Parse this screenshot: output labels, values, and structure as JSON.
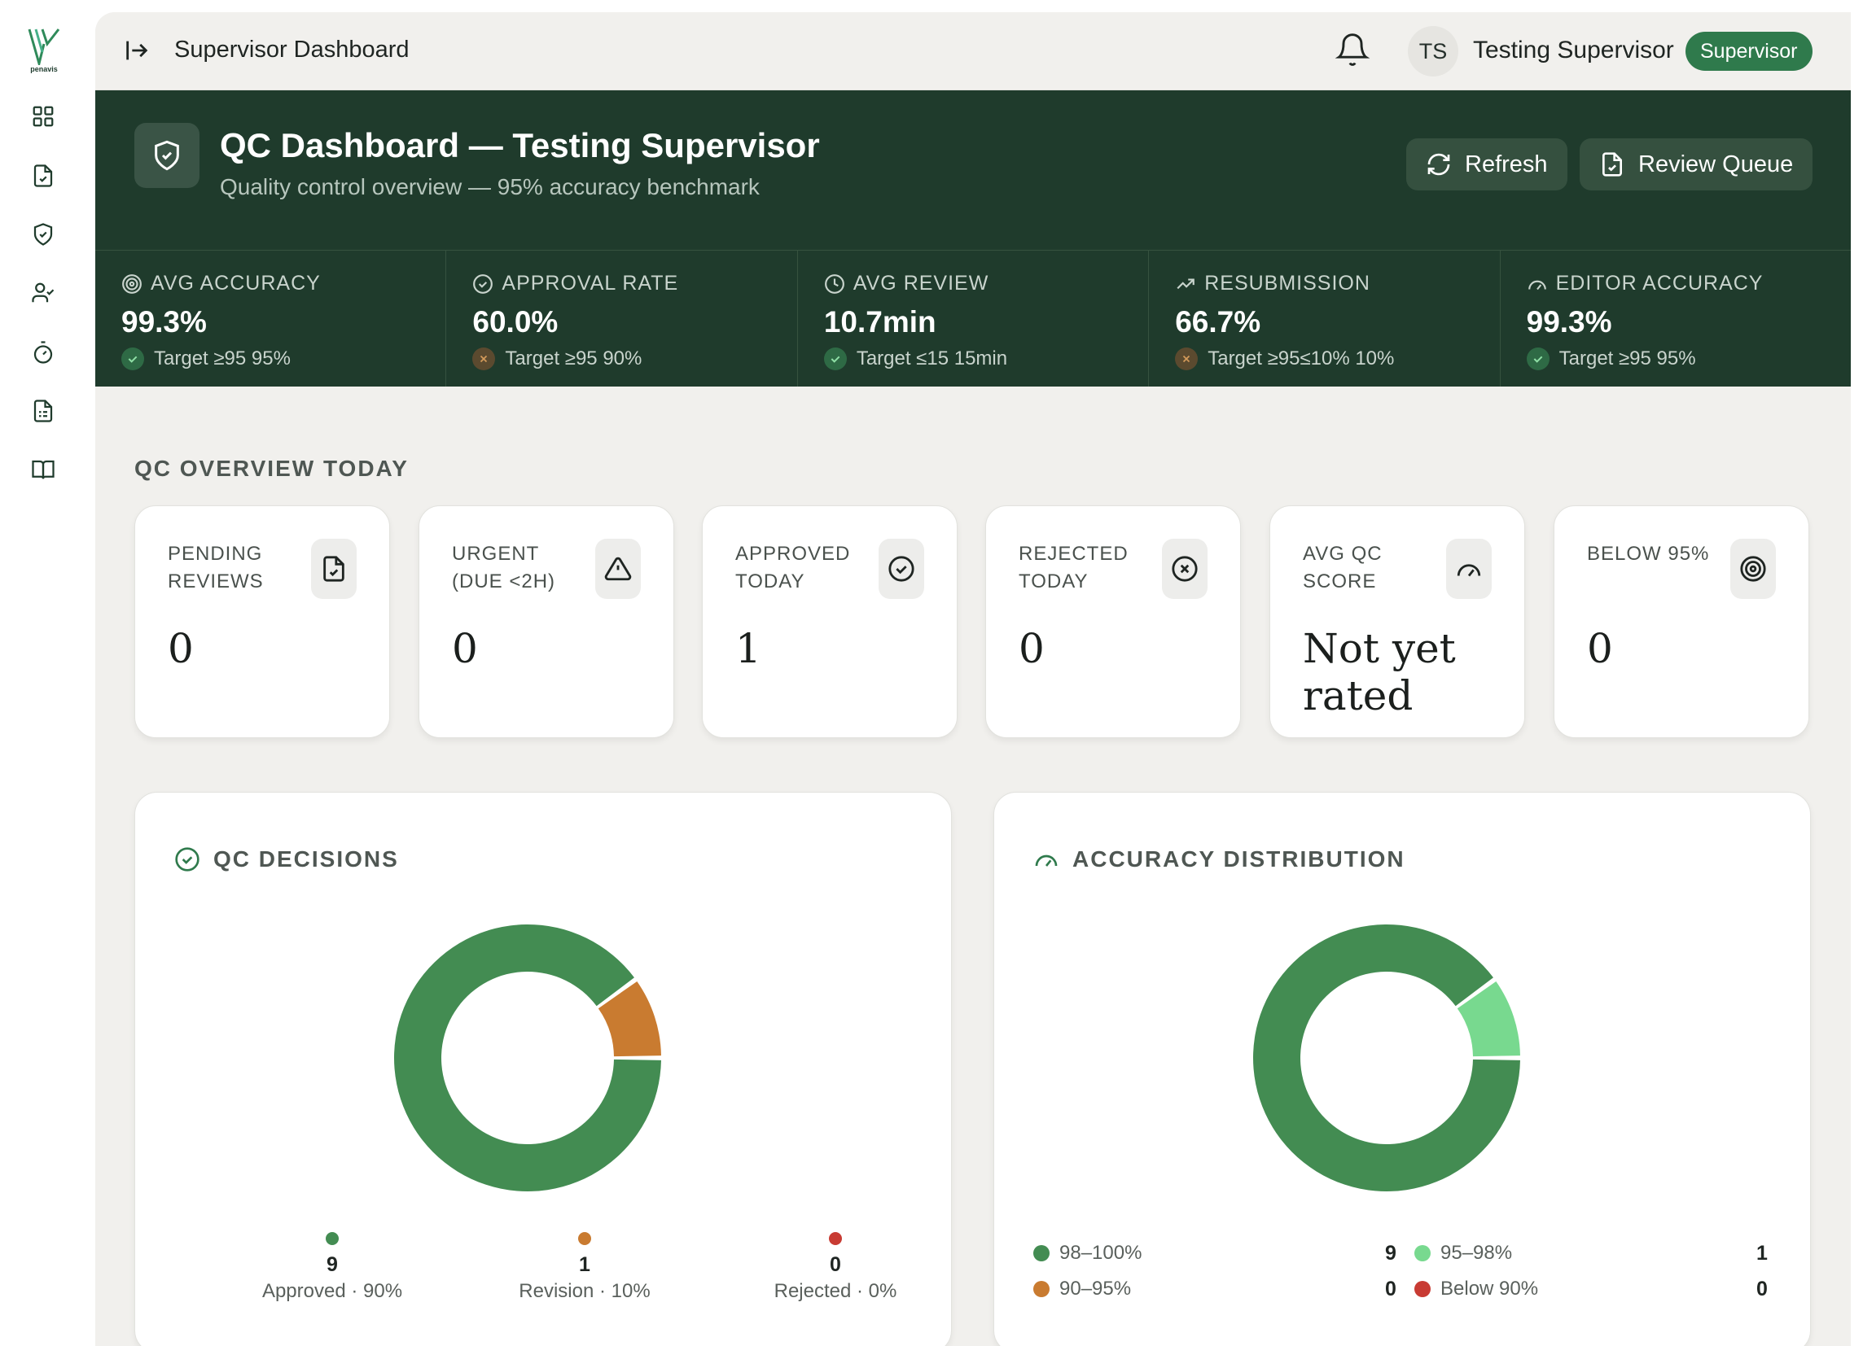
{
  "app": {
    "logo_text": "penavis"
  },
  "topbar": {
    "title": "Supervisor Dashboard",
    "avatar_initials": "TS",
    "user_name": "Testing Supervisor",
    "role": "Supervisor"
  },
  "hero": {
    "title": "QC Dashboard — Testing Supervisor",
    "subtitle": "Quality control overview — 95% accuracy benchmark",
    "refresh_label": "Refresh",
    "review_queue_label": "Review Queue"
  },
  "kpis": [
    {
      "label": "AVG ACCURACY",
      "value": "99.3%",
      "target": "Target ≥95 95%",
      "status": "ok"
    },
    {
      "label": "APPROVAL RATE",
      "value": "60.0%",
      "target": "Target ≥95 90%",
      "status": "bad"
    },
    {
      "label": "AVG REVIEW",
      "value": "10.7min",
      "target": "Target ≤15 15min",
      "status": "ok"
    },
    {
      "label": "RESUBMISSION",
      "value": "66.7%",
      "target": "Target ≥95≤10% 10%",
      "status": "bad"
    },
    {
      "label": "EDITOR ACCURACY",
      "value": "99.3%",
      "target": "Target ≥95 95%",
      "status": "ok"
    }
  ],
  "overview": {
    "title": "QC OVERVIEW TODAY",
    "cards": [
      {
        "label": "PENDING REVIEWS",
        "value": "0",
        "icon": "file-check-icon"
      },
      {
        "label": "URGENT (DUE <2H)",
        "value": "0",
        "icon": "alert-triangle-icon"
      },
      {
        "label": "APPROVED TODAY",
        "value": "1",
        "icon": "check-circle-icon"
      },
      {
        "label": "REJECTED TODAY",
        "value": "0",
        "icon": "x-circle-icon"
      },
      {
        "label": "AVG QC SCORE",
        "value": "Not yet rated",
        "icon": "gauge-icon"
      },
      {
        "label": "BELOW 95%",
        "value": "0",
        "icon": "target-icon"
      }
    ]
  },
  "decisions": {
    "title": "QC DECISIONS",
    "items": [
      {
        "count": "9",
        "label": "Approved · 90%"
      },
      {
        "count": "1",
        "label": "Revision · 10%"
      },
      {
        "count": "0",
        "label": "Rejected · 0%"
      }
    ]
  },
  "accuracy": {
    "title": "ACCURACY DISTRIBUTION",
    "items": [
      {
        "label": "98–100%",
        "count": "9"
      },
      {
        "label": "95–98%",
        "count": "1"
      },
      {
        "label": "90–95%",
        "count": "0"
      },
      {
        "label": "Below 90%",
        "count": "0"
      }
    ]
  },
  "chart_data": [
    {
      "type": "pie",
      "categories": [
        "Approved",
        "Revision",
        "Rejected"
      ],
      "values": [
        9,
        1,
        0
      ],
      "colors": [
        "#438c52",
        "#c97b30",
        "#c83b33"
      ]
    },
    {
      "type": "pie",
      "categories": [
        "98–100%",
        "95–98%",
        "90–95%",
        "Below 90%"
      ],
      "values": [
        9,
        1,
        0,
        0
      ],
      "colors": [
        "#438c52",
        "#78d98f",
        "#c97b30",
        "#c83b33"
      ]
    }
  ],
  "colors": {
    "brand_dark": "#1f3b2c",
    "accent": "#2f7a4c",
    "frame_bg": "#f1f0ed"
  }
}
